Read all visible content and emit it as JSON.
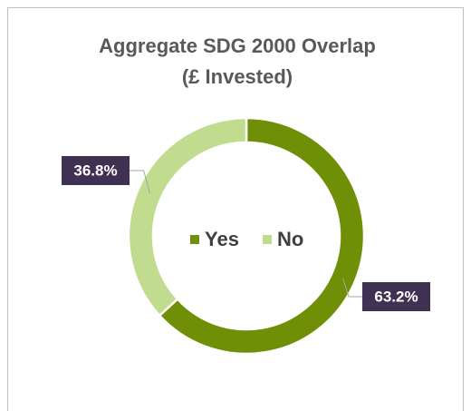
{
  "chart_data": {
    "type": "donut",
    "title": [
      "Aggregate SDG 2000 Overlap",
      "(£ Invested)"
    ],
    "categories": [
      "Yes",
      "No"
    ],
    "values": [
      63.2,
      36.8
    ],
    "value_labels": [
      "63.2%",
      "36.8%"
    ],
    "colors": [
      "#6e8f06",
      "#c1dc8e"
    ],
    "legend": "center"
  }
}
